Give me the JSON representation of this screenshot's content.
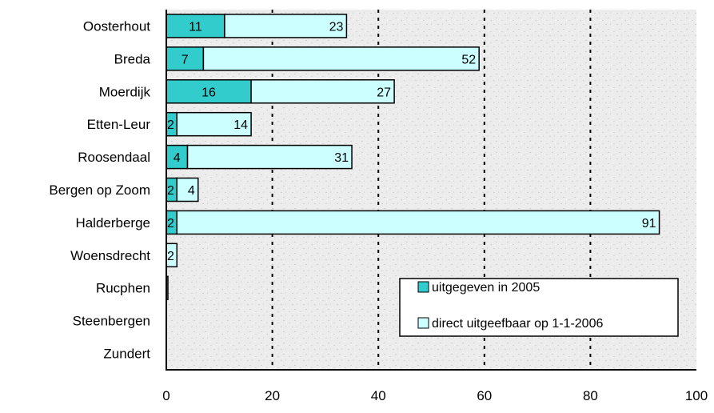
{
  "chart_data": {
    "type": "bar",
    "orientation": "horizontal",
    "stacked": true,
    "categories": [
      "Oosterhout",
      "Breda",
      "Moerdijk",
      "Etten-Leur",
      "Roosendaal",
      "Bergen op Zoom",
      "Halderberge",
      "Woensdrecht",
      "Rucphen",
      "Steenbergen",
      "Zundert"
    ],
    "series": [
      {
        "name": "uitgegeven in 2005",
        "color": "#33cccc",
        "values": [
          11,
          7,
          16,
          2,
          4,
          2,
          2,
          0,
          0.3,
          0,
          0
        ],
        "labels": [
          "11",
          "7",
          "16",
          "2",
          "4",
          "2",
          "2",
          "",
          "",
          "",
          ""
        ]
      },
      {
        "name": "direct uitgeefbaar op 1-1-2006",
        "color": "#ccffff",
        "values": [
          23,
          52,
          27,
          14,
          31,
          4,
          91,
          2,
          0,
          0,
          0
        ],
        "labels": [
          "23",
          "52",
          "27",
          "14",
          "31",
          "4",
          "91",
          "2",
          "",
          "",
          ""
        ]
      }
    ],
    "xlim": [
      0,
      100
    ],
    "xticks": [
      "0",
      "20",
      "40",
      "60",
      "80",
      "100"
    ],
    "grid": "vertical dashed",
    "legend_position": "bottom-right inside plot",
    "title": "",
    "xlabel": "",
    "ylabel": ""
  }
}
